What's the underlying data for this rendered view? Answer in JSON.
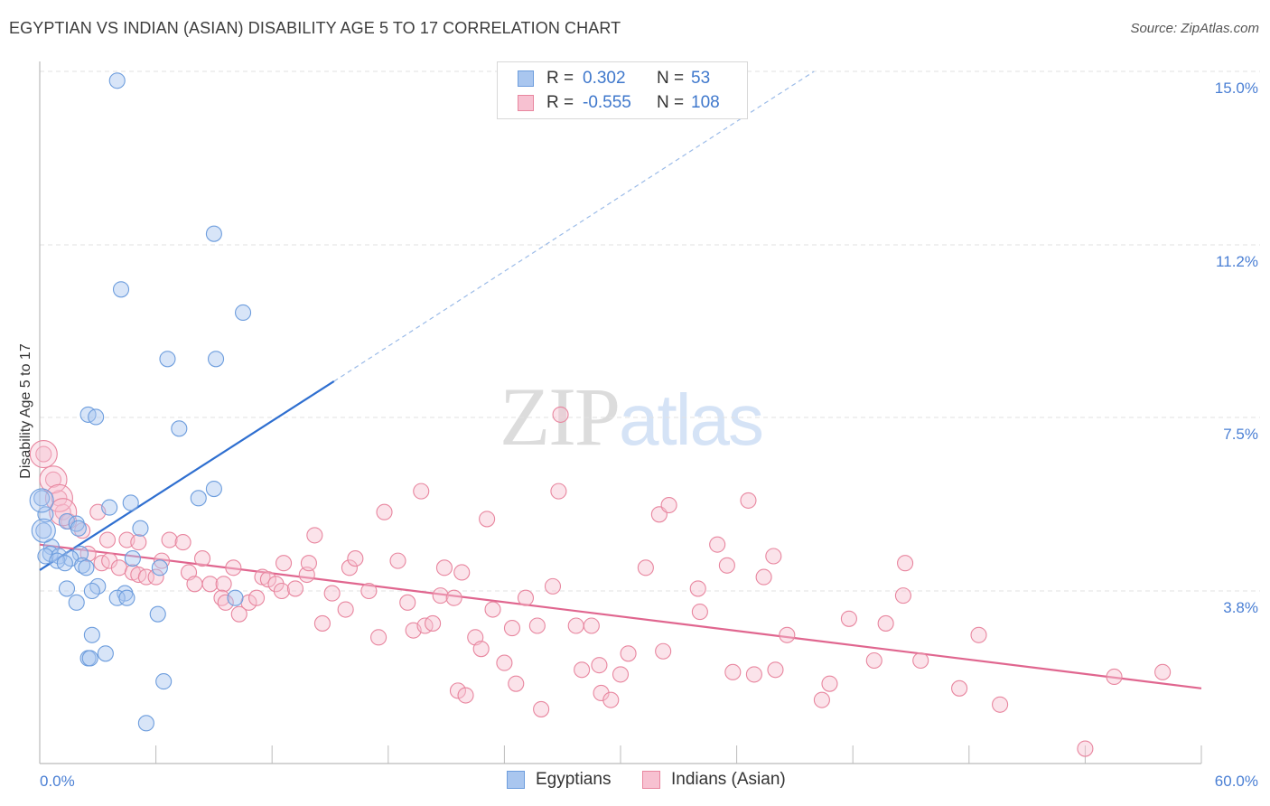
{
  "title": "EGYPTIAN VS INDIAN (ASIAN) DISABILITY AGE 5 TO 17 CORRELATION CHART",
  "source": "Source: ZipAtlas.com",
  "watermark": {
    "zip": "ZIP",
    "atlas": "atlas"
  },
  "legend": {
    "rows": [
      {
        "r_label": "R =",
        "r_value": "0.302",
        "n_label": "N =",
        "n_value": "53",
        "color": "#a9c6ef",
        "border": "#6d9ddd"
      },
      {
        "r_label": "R =",
        "r_value": "-0.555",
        "n_label": "N =",
        "n_value": "108",
        "color": "#f7c1d1",
        "border": "#e8869f"
      }
    ]
  },
  "bottom_legend": {
    "series1": "Egyptians",
    "series2": "Indians (Asian)"
  },
  "chart_data": {
    "type": "scatter",
    "title": "EGYPTIAN VS INDIAN (ASIAN) DISABILITY AGE 5 TO 17 CORRELATION CHART",
    "xlabel": "",
    "ylabel": "Disability Age 5 to 17",
    "xlim": [
      0,
      60
    ],
    "ylim": [
      0,
      15.5
    ],
    "x_tick_labels": [
      "0.0%",
      "60.0%"
    ],
    "y_ticks": [
      3.8,
      7.5,
      11.2,
      15.0
    ],
    "y_tick_labels": [
      "3.8%",
      "7.5%",
      "11.2%",
      "15.0%"
    ],
    "grid": true,
    "legend_position": "top-center",
    "series": [
      {
        "name": "Egyptians",
        "color": "#6d9ddd",
        "fill": "#a9c6ef",
        "trend": {
          "x": [
            0,
            15.2
          ],
          "y": [
            4.25,
            8.32
          ],
          "extended_x": [
            15.2,
            40
          ],
          "extended_y": [
            8.32,
            15.0
          ]
        },
        "points": [
          [
            4.0,
            14.8
          ],
          [
            9.0,
            11.5
          ],
          [
            4.2,
            10.3
          ],
          [
            10.5,
            9.8
          ],
          [
            6.6,
            8.8
          ],
          [
            9.1,
            8.8
          ],
          [
            2.5,
            7.6
          ],
          [
            2.9,
            7.55
          ],
          [
            7.2,
            7.3
          ],
          [
            9.0,
            6.0
          ],
          [
            8.2,
            5.8
          ],
          [
            0.1,
            5.8
          ],
          [
            3.6,
            5.6
          ],
          [
            4.7,
            5.7
          ],
          [
            0.3,
            5.45
          ],
          [
            1.4,
            5.3
          ],
          [
            1.9,
            5.25
          ],
          [
            2.0,
            5.15
          ],
          [
            5.2,
            5.15
          ],
          [
            0.2,
            5.1
          ],
          [
            0.6,
            4.75
          ],
          [
            2.1,
            4.6
          ],
          [
            0.55,
            4.6
          ],
          [
            0.3,
            4.55
          ],
          [
            1.0,
            4.55
          ],
          [
            1.6,
            4.5
          ],
          [
            4.8,
            4.5
          ],
          [
            0.9,
            4.45
          ],
          [
            2.2,
            4.35
          ],
          [
            2.4,
            4.3
          ],
          [
            1.3,
            4.4
          ],
          [
            6.2,
            4.3
          ],
          [
            3.0,
            3.9
          ],
          [
            1.4,
            3.85
          ],
          [
            2.7,
            3.8
          ],
          [
            4.4,
            3.75
          ],
          [
            4.0,
            3.65
          ],
          [
            4.5,
            3.65
          ],
          [
            10.1,
            3.65
          ],
          [
            1.9,
            3.55
          ],
          [
            6.1,
            3.3
          ],
          [
            2.7,
            2.85
          ],
          [
            3.4,
            2.45
          ],
          [
            2.5,
            2.35
          ],
          [
            2.6,
            2.35
          ],
          [
            6.4,
            1.85
          ],
          [
            5.5,
            0.95
          ]
        ],
        "big_points": [
          [
            0.1,
            5.75
          ],
          [
            0.2,
            5.1
          ]
        ]
      },
      {
        "name": "Indians (Asian)",
        "color": "#e8869f",
        "fill": "#f7c1d1",
        "trend": {
          "x": [
            0,
            60
          ],
          "y": [
            4.8,
            1.7
          ]
        },
        "points": [
          [
            0.2,
            6.75
          ],
          [
            0.7,
            6.2
          ],
          [
            1.0,
            5.8
          ],
          [
            1.2,
            5.5
          ],
          [
            1.5,
            5.3
          ],
          [
            2.2,
            5.1
          ],
          [
            3.0,
            5.5
          ],
          [
            3.5,
            4.9
          ],
          [
            4.5,
            4.9
          ],
          [
            5.1,
            4.85
          ],
          [
            6.7,
            4.9
          ],
          [
            7.4,
            4.85
          ],
          [
            2.5,
            4.6
          ],
          [
            3.2,
            4.4
          ],
          [
            3.6,
            4.45
          ],
          [
            4.1,
            4.3
          ],
          [
            4.8,
            4.2
          ],
          [
            5.1,
            4.15
          ],
          [
            5.5,
            4.1
          ],
          [
            6.0,
            4.1
          ],
          [
            6.3,
            4.45
          ],
          [
            7.7,
            4.2
          ],
          [
            8.4,
            4.5
          ],
          [
            8.0,
            3.95
          ],
          [
            8.8,
            3.95
          ],
          [
            9.5,
            3.95
          ],
          [
            10.0,
            4.3
          ],
          [
            9.4,
            3.65
          ],
          [
            9.6,
            3.55
          ],
          [
            10.3,
            3.3
          ],
          [
            10.8,
            3.55
          ],
          [
            11.2,
            3.65
          ],
          [
            11.5,
            4.1
          ],
          [
            11.8,
            4.05
          ],
          [
            12.2,
            3.95
          ],
          [
            12.5,
            3.8
          ],
          [
            12.6,
            4.4
          ],
          [
            13.2,
            3.85
          ],
          [
            13.8,
            4.15
          ],
          [
            13.9,
            4.4
          ],
          [
            14.2,
            5.0
          ],
          [
            14.6,
            3.1
          ],
          [
            15.1,
            3.75
          ],
          [
            15.8,
            3.4
          ],
          [
            16.0,
            4.3
          ],
          [
            16.3,
            4.5
          ],
          [
            17.0,
            3.8
          ],
          [
            17.5,
            2.8
          ],
          [
            17.8,
            5.5
          ],
          [
            18.5,
            4.45
          ],
          [
            19.0,
            3.55
          ],
          [
            19.3,
            2.95
          ],
          [
            19.7,
            5.95
          ],
          [
            19.9,
            3.05
          ],
          [
            20.3,
            3.1
          ],
          [
            20.7,
            3.7
          ],
          [
            20.9,
            4.3
          ],
          [
            21.4,
            3.65
          ],
          [
            21.8,
            4.2
          ],
          [
            21.6,
            1.65
          ],
          [
            22.0,
            1.55
          ],
          [
            22.5,
            2.8
          ],
          [
            22.8,
            2.55
          ],
          [
            23.1,
            5.35
          ],
          [
            23.4,
            3.4
          ],
          [
            24.0,
            2.25
          ],
          [
            24.4,
            3.0
          ],
          [
            24.6,
            1.8
          ],
          [
            25.1,
            3.65
          ],
          [
            25.7,
            3.05
          ],
          [
            25.9,
            1.25
          ],
          [
            26.5,
            3.9
          ],
          [
            26.8,
            5.95
          ],
          [
            26.9,
            7.6
          ],
          [
            27.7,
            3.05
          ],
          [
            28.0,
            2.1
          ],
          [
            28.5,
            3.05
          ],
          [
            28.9,
            2.2
          ],
          [
            29.0,
            1.6
          ],
          [
            29.5,
            1.45
          ],
          [
            30.0,
            2.0
          ],
          [
            30.4,
            2.45
          ],
          [
            31.3,
            4.3
          ],
          [
            32.0,
            5.45
          ],
          [
            32.2,
            2.5
          ],
          [
            32.5,
            5.65
          ],
          [
            34.0,
            3.85
          ],
          [
            34.1,
            3.35
          ],
          [
            35.0,
            4.8
          ],
          [
            35.5,
            4.35
          ],
          [
            35.8,
            2.05
          ],
          [
            36.6,
            5.75
          ],
          [
            36.9,
            2.0
          ],
          [
            37.4,
            4.1
          ],
          [
            37.9,
            4.55
          ],
          [
            38.0,
            2.1
          ],
          [
            38.6,
            2.85
          ],
          [
            40.4,
            1.45
          ],
          [
            40.8,
            1.8
          ],
          [
            41.8,
            3.2
          ],
          [
            43.1,
            2.3
          ],
          [
            43.7,
            3.1
          ],
          [
            44.6,
            3.7
          ],
          [
            44.7,
            4.4
          ],
          [
            45.5,
            2.3
          ],
          [
            47.5,
            1.7
          ],
          [
            48.5,
            2.85
          ],
          [
            49.6,
            1.35
          ],
          [
            54.0,
            0.4
          ],
          [
            55.5,
            1.95
          ],
          [
            58.0,
            2.05
          ]
        ],
        "big_points": [
          [
            0.2,
            6.75
          ],
          [
            0.7,
            6.2
          ],
          [
            1.0,
            5.8
          ],
          [
            1.2,
            5.5
          ]
        ]
      }
    ]
  }
}
